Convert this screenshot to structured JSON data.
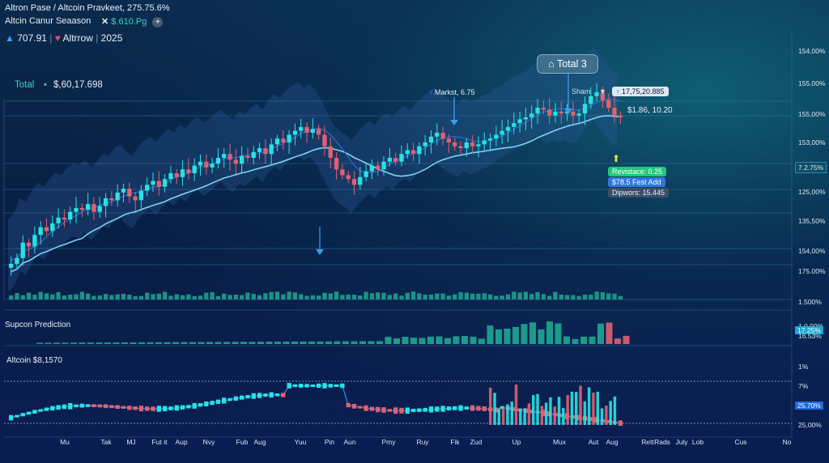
{
  "header": {
    "line1": "Altron Pase / Altcoin Pravkeet,  275.75.6%",
    "line2": "Altcin Canur Seaason",
    "x_value": "$.610.Pg",
    "plus_label": "+",
    "stat_value": "707.91",
    "stat_name": "Altrrow",
    "year": "2025"
  },
  "total": {
    "label": "Total",
    "value": "$,60,17.698"
  },
  "callouts": {
    "total3": "Total 3",
    "markst": "Markst, 6.75",
    "sham": "Sham",
    "price_flag": "17,75,20.885",
    "price_info": "$1.86, 10.20",
    "resistance": "Revistace: 0.25",
    "fest": "$78.5 Fest Add",
    "dipwors": "Dipwors: 15.445"
  },
  "panels": {
    "prediction_title": "Supcon Prediction",
    "altcoin_title": "Altcoin $8,1570"
  },
  "colors": {
    "up": "#27e3e3",
    "down": "#e0616f",
    "volume": "#1fa891",
    "accent": "#3b9df2"
  },
  "icons": [
    "home-icon",
    "triangle-icon",
    "heart-icon",
    "x-icon",
    "plus-icon",
    "up-arrow-icon",
    "down-arrow-icon"
  ],
  "chart_data": {
    "type": "candlestick",
    "y_ticks": [
      "154,00%",
      "155.00%",
      "155,00%",
      "153,00%",
      "7.2.75%",
      "125,00%",
      "135,50%",
      "154,00%",
      "175.00%",
      "1.500%"
    ],
    "y_badge": "7.2.75%",
    "prediction_ticks": [
      "1.0.00%",
      "17.25%",
      "16.53%"
    ],
    "prediction_badge": "17.25%",
    "altcoin_ticks": [
      "1%",
      "7%",
      "25.70%",
      "25,00%"
    ],
    "altcoin_badge": "25.70%",
    "x_ticks": [
      "Mu",
      "Tak",
      "MJ",
      "Fut it",
      "Aup",
      "Nvy",
      "Fub",
      "Aug",
      "Yuu",
      "Pin",
      "Aun",
      "Pmy",
      "Ruy",
      "Fik",
      "Zud",
      "Up",
      "Mux",
      "Aut",
      "Aug",
      "Rett",
      "Rads",
      "July",
      "Lob",
      "Cus",
      "No"
    ],
    "candles_close": [
      3,
      6,
      14,
      12,
      18,
      22,
      20,
      24,
      27,
      26,
      30,
      32,
      31,
      34,
      30,
      33,
      37,
      36,
      40,
      42,
      38,
      36,
      41,
      44,
      46,
      43,
      47,
      50,
      48,
      52,
      50,
      54,
      56,
      53,
      55,
      58,
      60,
      57,
      55,
      59,
      58,
      61,
      63,
      60,
      65,
      68,
      66,
      70,
      72,
      74,
      71,
      73,
      70,
      64,
      58,
      52,
      49,
      47,
      44,
      48,
      51,
      54,
      52,
      56,
      58,
      56,
      60,
      62,
      60,
      64,
      66,
      69,
      71,
      68,
      66,
      64,
      63,
      66,
      64,
      65,
      67,
      68,
      70,
      72,
      74,
      76,
      78,
      79,
      81,
      84,
      83,
      80,
      82,
      81,
      82,
      80,
      81,
      86,
      90,
      92,
      88,
      84,
      80,
      79
    ]
  }
}
